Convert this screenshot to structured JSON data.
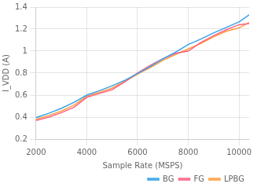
{
  "chart_data": {
    "type": "line",
    "xlabel": "Sample Rate (MSPS)",
    "ylabel": "I_VDD (A)",
    "x": [
      2000,
      2500,
      3000,
      3500,
      4000,
      4500,
      5000,
      5500,
      6000,
      6500,
      7000,
      7500,
      8000,
      8500,
      9000,
      9500,
      10000,
      10400
    ],
    "series": [
      {
        "name": "BG",
        "values": [
          0.395,
          0.435,
          0.48,
          0.535,
          0.6,
          0.64,
          0.685,
          0.735,
          0.795,
          0.86,
          0.93,
          0.99,
          1.06,
          1.11,
          1.165,
          1.215,
          1.265,
          1.33
        ]
      },
      {
        "name": "FG",
        "values": [
          0.37,
          0.4,
          0.44,
          0.49,
          0.58,
          0.615,
          0.65,
          0.72,
          0.8,
          0.87,
          0.93,
          0.98,
          1.0,
          1.08,
          1.14,
          1.195,
          1.24,
          1.25
        ]
      },
      {
        "name": "LPBG",
        "values": [
          0.38,
          0.415,
          0.455,
          0.51,
          0.59,
          0.625,
          0.665,
          0.725,
          0.79,
          0.85,
          0.915,
          0.97,
          1.02,
          1.07,
          1.13,
          1.18,
          1.21,
          1.26
        ]
      }
    ],
    "xlim": [
      2000,
      10400
    ],
    "ylim": [
      0.2,
      1.4
    ],
    "xticks": [
      2000,
      4000,
      6000,
      8000,
      10000
    ],
    "yticks": [
      0.2,
      0.4,
      0.6,
      0.8,
      1,
      1.2,
      1.4
    ],
    "grid": true,
    "legend": "lower right"
  }
}
